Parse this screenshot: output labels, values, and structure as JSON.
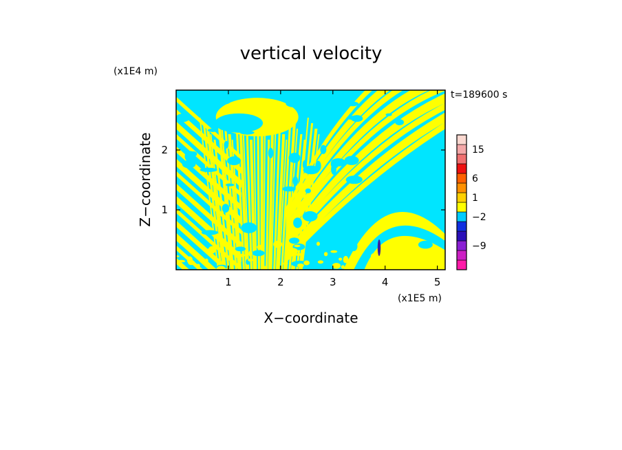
{
  "chart_data": {
    "type": "heatmap",
    "title": "vertical velocity",
    "xlabel": "X−coordinate",
    "ylabel": "Z−coordinate",
    "x_unit": "(x1E5 m)",
    "y_unit": "(x1E4 m)",
    "time_label": "t=189600 s",
    "xlim": [
      0,
      5.15
    ],
    "ylim": [
      0,
      3.0
    ],
    "x_ticks": [
      {
        "value": 1,
        "label": "1"
      },
      {
        "value": 2,
        "label": "2"
      },
      {
        "value": 3,
        "label": "3"
      },
      {
        "value": 4,
        "label": "4"
      },
      {
        "value": 5,
        "label": "5"
      }
    ],
    "y_ticks": [
      {
        "value": 1,
        "label": "1"
      },
      {
        "value": 2,
        "label": "2"
      }
    ],
    "grid": false,
    "field_colors": {
      "positive": "#ffff00",
      "negative": "#00e5ff",
      "strong_negative": "#3a1fa0"
    },
    "colorbar": {
      "levels_from_bottom": [
        {
          "color": "#ff1aa8"
        },
        {
          "color": "#cc1fc4"
        },
        {
          "color": "#8a1fd4"
        },
        {
          "color": "#2a0fb8"
        },
        {
          "color": "#1030e0"
        },
        {
          "color": "#00ccff"
        },
        {
          "color": "#ffff00"
        },
        {
          "color": "#ffd000"
        },
        {
          "color": "#ff9000"
        },
        {
          "color": "#ff6000"
        },
        {
          "color": "#ee1010"
        },
        {
          "color": "#f07070"
        },
        {
          "color": "#f4a8a8"
        },
        {
          "color": "#fad8d0"
        }
      ],
      "labels": [
        {
          "text": "15",
          "level": 12
        },
        {
          "text": "6",
          "level": 9
        },
        {
          "text": "1",
          "level": 7
        },
        {
          "text": "−2",
          "level": 5
        },
        {
          "text": "−9",
          "level": 2
        }
      ]
    }
  }
}
